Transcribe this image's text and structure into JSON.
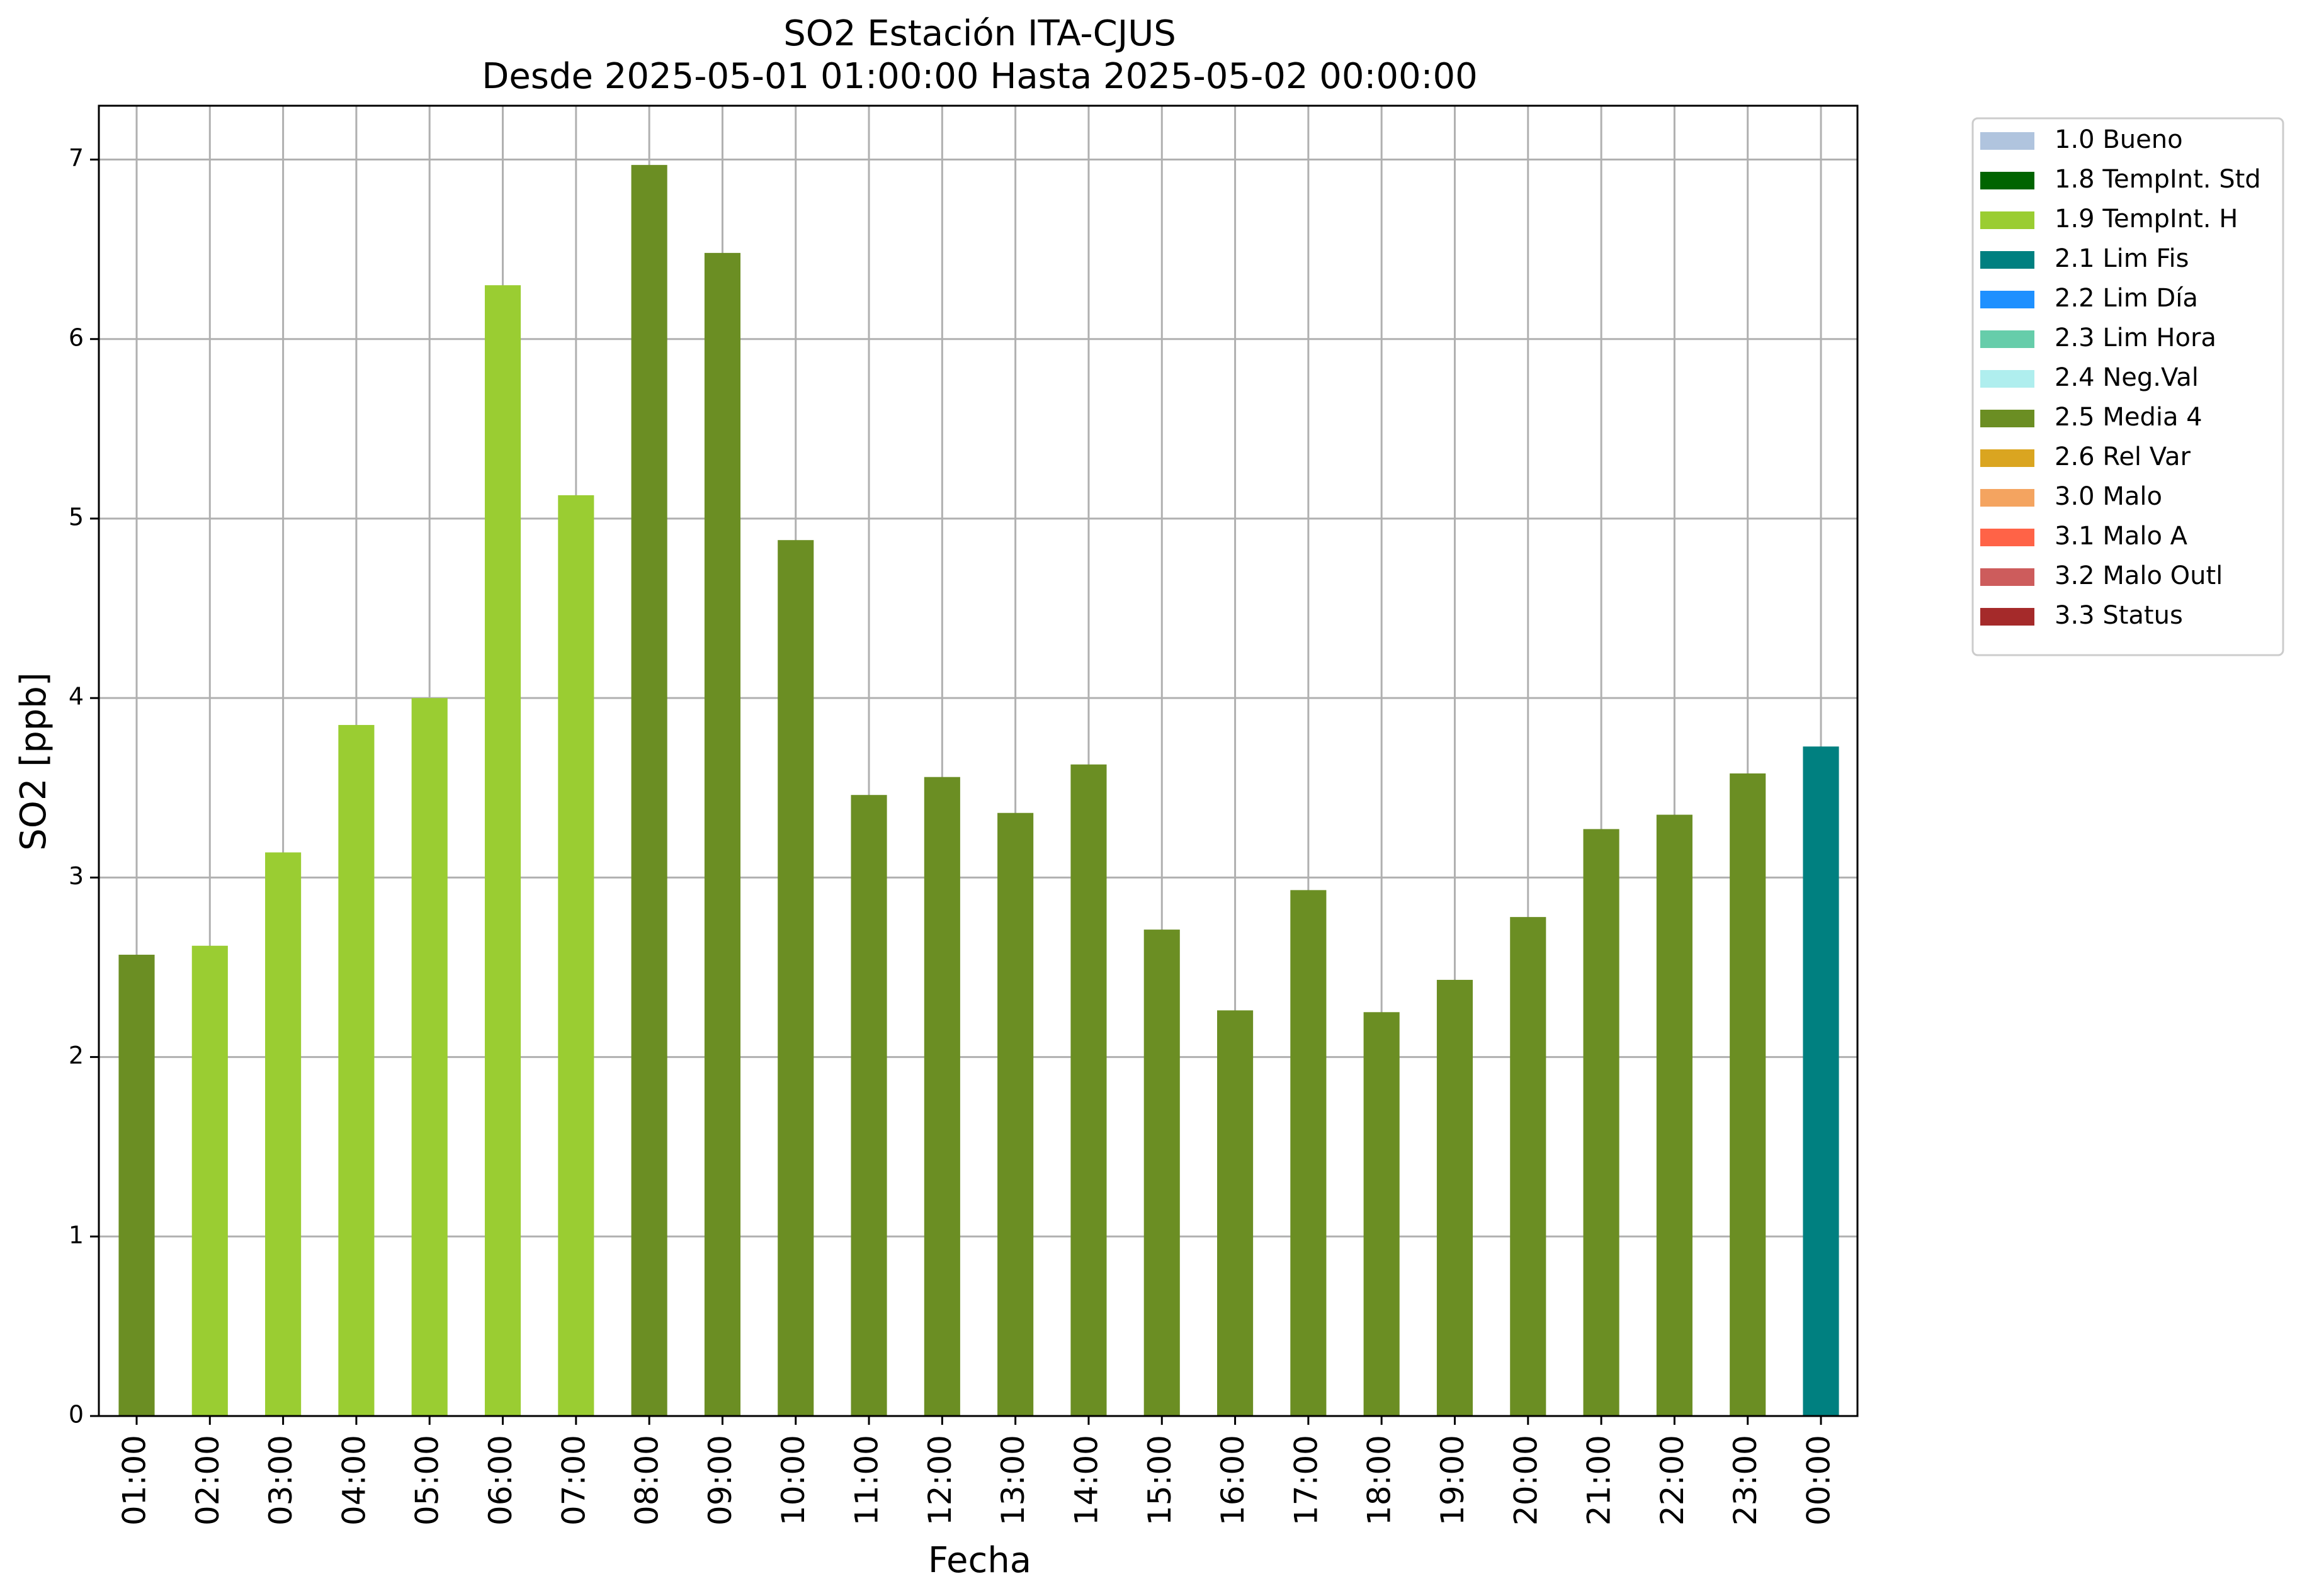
{
  "chart_data": {
    "type": "bar",
    "title": "SO2 Estación ITA-CJUS",
    "subtitle": "Desde 2025-05-01 01:00:00 Hasta 2025-05-02 00:00:00",
    "xlabel": "Fecha",
    "ylabel": "SO2 [ppb]",
    "ylim": [
      0,
      7.3
    ],
    "yticks": [
      "0",
      "1",
      "2",
      "3",
      "4",
      "5",
      "6",
      "7"
    ],
    "grid": true,
    "legend_position": "outside-right",
    "categories": [
      "01:00",
      "02:00",
      "03:00",
      "04:00",
      "05:00",
      "06:00",
      "07:00",
      "08:00",
      "09:00",
      "10:00",
      "11:00",
      "12:00",
      "13:00",
      "14:00",
      "15:00",
      "16:00",
      "17:00",
      "18:00",
      "19:00",
      "20:00",
      "21:00",
      "22:00",
      "23:00",
      "00:00"
    ],
    "values": [
      2.57,
      2.62,
      3.14,
      3.85,
      4.0,
      6.3,
      5.13,
      6.97,
      6.48,
      4.88,
      3.46,
      3.56,
      3.36,
      3.63,
      2.71,
      2.26,
      2.93,
      2.25,
      2.43,
      2.78,
      3.27,
      3.35,
      3.58,
      3.73
    ],
    "flags": [
      "2.5 Media 4",
      "1.9 TempInt. H",
      "1.9 TempInt. H",
      "1.9 TempInt. H",
      "1.9 TempInt. H",
      "1.9 TempInt. H",
      "1.9 TempInt. H",
      "2.5 Media 4",
      "2.5 Media 4",
      "2.5 Media 4",
      "2.5 Media 4",
      "2.5 Media 4",
      "2.5 Media 4",
      "2.5 Media 4",
      "2.5 Media 4",
      "2.5 Media 4",
      "2.5 Media 4",
      "2.5 Media 4",
      "2.5 Media 4",
      "2.5 Media 4",
      "2.5 Media 4",
      "2.5 Media 4",
      "2.5 Media 4",
      "2.1 Lim Fis"
    ],
    "legend": [
      {
        "label": "1.0 Bueno",
        "color": "#b0c4de"
      },
      {
        "label": "1.8 TempInt. Std",
        "color": "#006400"
      },
      {
        "label": "1.9 TempInt. H",
        "color": "#9acd32"
      },
      {
        "label": "2.1 Lim Fis",
        "color": "#008080"
      },
      {
        "label": "2.2 Lim Día",
        "color": "#1e90ff"
      },
      {
        "label": "2.3 Lim Hora",
        "color": "#66cdaa"
      },
      {
        "label": "2.4 Neg.Val",
        "color": "#afeeee"
      },
      {
        "label": "2.5 Media 4",
        "color": "#6b8e23"
      },
      {
        "label": "2.6 Rel Var",
        "color": "#daa520"
      },
      {
        "label": "3.0 Malo",
        "color": "#f4a460"
      },
      {
        "label": "3.1 Malo A",
        "color": "#ff6347"
      },
      {
        "label": "3.2 Malo Outl",
        "color": "#cd5c5c"
      },
      {
        "label": "3.3 Status",
        "color": "#a52a2a"
      }
    ]
  }
}
